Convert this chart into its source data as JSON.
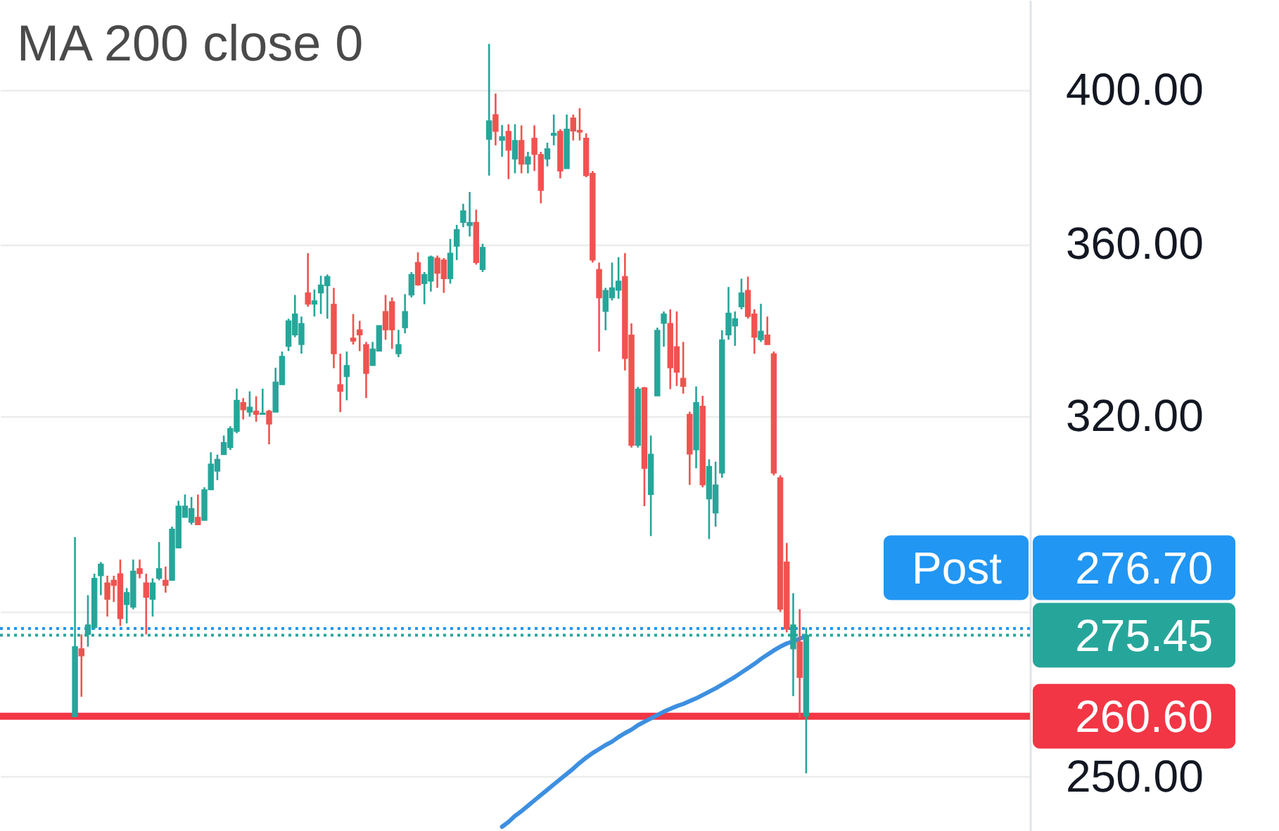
{
  "chart_data": {
    "type": "candlestick",
    "title": "MA 200 close 0",
    "categories": [
      null,
      null,
      null,
      null,
      null,
      null,
      null,
      null,
      null,
      null,
      null,
      null,
      null,
      null,
      null,
      null,
      null,
      null,
      null,
      null,
      null,
      null,
      null,
      null,
      null,
      null,
      null,
      null,
      null,
      null,
      null,
      null,
      null,
      null,
      null,
      null,
      null,
      null,
      null,
      null,
      null,
      null,
      null,
      null,
      null,
      null,
      null,
      null,
      null,
      null,
      null,
      null,
      null,
      null,
      null,
      null,
      null,
      null,
      null,
      null,
      null,
      null,
      null,
      null,
      null,
      null,
      null,
      null,
      null,
      null,
      null,
      null,
      null,
      null,
      null,
      null,
      null,
      null,
      null,
      null,
      null,
      null,
      null,
      null,
      null,
      null,
      null,
      null,
      null,
      null,
      null,
      null,
      null,
      null,
      null,
      null,
      null,
      null,
      null,
      null,
      null,
      null,
      null,
      null,
      null,
      null,
      null,
      null,
      null,
      null,
      null,
      null,
      null,
      null,
      null,
      null,
      null,
      null,
      null,
      null,
      null,
      null,
      null,
      null,
      null,
      null,
      null,
      null,
      null,
      null,
      null,
      null,
      null,
      null,
      null,
      null,
      null,
      null,
      null,
      null,
      null,
      null,
      null,
      null,
      null,
      null,
      null,
      null,
      null,
      null,
      null,
      null,
      null,
      null,
      null,
      null,
      null
    ],
    "ohlc": [
      null,
      null,
      null,
      null,
      null,
      null,
      null,
      null,
      null,
      null,
      [
        260.5,
        294.6,
        260.5,
        273.3
      ],
      [
        272.9,
        275.6,
        264.1,
        271.6
      ],
      [
        275.6,
        283.1,
        273.3,
        277.4
      ],
      [
        276.9,
        287.3,
        276.5,
        286.4
      ],
      [
        286.9,
        289.6,
        283.1,
        289.2
      ],
      [
        285.5,
        286.9,
        279.0,
        282.3
      ],
      [
        286.0,
        286.9,
        281.8,
        285.0
      ],
      [
        287.3,
        290.1,
        277.2,
        278.6
      ],
      [
        281.3,
        284.5,
        277.7,
        283.6
      ],
      [
        280.8,
        290.1,
        280.4,
        287.8
      ],
      [
        288.3,
        290.1,
        286.4,
        287.3
      ],
      [
        285.5,
        287.3,
        275.6,
        282.7
      ],
      [
        282.3,
        286.4,
        279.0,
        285.5
      ],
      [
        286.4,
        293.6,
        286.0,
        288.3
      ],
      [
        286.0,
        288.7,
        283.6,
        285.0
      ],
      [
        286.0,
        296.7,
        286.0,
        296.2
      ],
      [
        292.4,
        302.0,
        292.4,
        300.9
      ],
      [
        298.6,
        303.3,
        298.6,
        300.9
      ],
      [
        297.6,
        302.8,
        297.1,
        300.4
      ],
      [
        298.6,
        303.3,
        297.1,
        297.1
      ],
      [
        298.0,
        304.8,
        298.0,
        304.3
      ],
      [
        304.3,
        312.2,
        304.3,
        309.7
      ],
      [
        308.2,
        311.7,
        306.3,
        310.7
      ],
      [
        311.7,
        315.8,
        311.7,
        314.3
      ],
      [
        313.2,
        317.8,
        312.7,
        317.3
      ],
      [
        316.7,
        326.1,
        316.3,
        323.5
      ],
      [
        323.0,
        324.0,
        319.3,
        321.4
      ],
      [
        320.9,
        325.5,
        319.9,
        322.0
      ],
      [
        321.1,
        324.4,
        318.8,
        320.4
      ],
      [
        320.4,
        326.1,
        320.4,
        320.7
      ],
      [
        321.1,
        321.4,
        313.9,
        318.3
      ],
      [
        320.9,
        330.8,
        320.9,
        327.6
      ],
      [
        327.0,
        334.5,
        327.0,
        333.4
      ],
      [
        335.7,
        342.1,
        334.6,
        341.6
      ],
      [
        338.3,
        347.7,
        337.8,
        343.2
      ],
      [
        336.1,
        342.6,
        334.0,
        341.0
      ],
      [
        348.2,
        357.8,
        344.9,
        345.5
      ],
      [
        345.5,
        349.0,
        342.6,
        346.3
      ],
      [
        348.2,
        352.3,
        343.2,
        350.1
      ],
      [
        349.9,
        352.6,
        342.1,
        352.1
      ],
      [
        345.5,
        349.4,
        330.7,
        334.0
      ],
      [
        327.0,
        334.0,
        320.9,
        325.5
      ],
      [
        328.8,
        334.5,
        323.5,
        331.3
      ],
      [
        337.6,
        343.2,
        336.1,
        336.9
      ],
      [
        339.5,
        341.6,
        334.6,
        338.3
      ],
      [
        336.1,
        336.7,
        324.0,
        329.5
      ],
      [
        331.3,
        336.7,
        331.3,
        335.1
      ],
      [
        334.6,
        340.5,
        334.6,
        340.5
      ],
      [
        343.8,
        347.7,
        337.2,
        339.5
      ],
      [
        346.1,
        347.1,
        335.1,
        339.5
      ],
      [
        334.0,
        339.5,
        333.2,
        336.1
      ],
      [
        340.0,
        347.9,
        338.7,
        343.8
      ],
      [
        347.7,
        353.2,
        347.1,
        352.6
      ],
      [
        355.5,
        358.0,
        349.9,
        350.1
      ],
      [
        350.4,
        353.2,
        345.5,
        352.6
      ],
      [
        351.0,
        357.2,
        348.5,
        356.9
      ],
      [
        356.6,
        357.2,
        349.4,
        352.9
      ],
      [
        356.1,
        356.6,
        348.2,
        351.6
      ],
      [
        351.6,
        361.3,
        350.4,
        357.8
      ],
      [
        359.5,
        364.8,
        356.1,
        363.6
      ],
      [
        365.4,
        370.1,
        364.2,
        368.3
      ],
      [
        364.6,
        373.1,
        361.9,
        365.4
      ],
      [
        365.4,
        368.6,
        355.0,
        355.5
      ],
      [
        353.8,
        360.1,
        353.2,
        359.2
      ],
      [
        386.8,
        412.9,
        377.3,
        391.7
      ],
      [
        393.4,
        399.1,
        385.2,
        388.9
      ],
      [
        386.5,
        390.6,
        382.2,
        387.5
      ],
      [
        388.9,
        390.8,
        376.4,
        383.9
      ],
      [
        381.6,
        390.8,
        377.9,
        386.5
      ],
      [
        386.5,
        390.5,
        377.9,
        380.3
      ],
      [
        380.3,
        383.5,
        377.9,
        382.2
      ],
      [
        387.1,
        390.5,
        378.5,
        382.8
      ],
      [
        382.8,
        383.5,
        370.2,
        373.5
      ],
      [
        381.6,
        385.9,
        379.7,
        384.3
      ],
      [
        387.8,
        393.4,
        385.2,
        388.4
      ],
      [
        388.9,
        389.5,
        376.6,
        378.5
      ],
      [
        379.1,
        393.4,
        379.1,
        389.5
      ],
      [
        392.5,
        393.4,
        386.5,
        389.0
      ],
      [
        389.2,
        395.1,
        386.5,
        388.7
      ],
      [
        387.1,
        388.4,
        376.9,
        377.3
      ],
      [
        377.9,
        378.5,
        355.5,
        356.1
      ],
      [
        353.8,
        355.5,
        334.5,
        347.0
      ],
      [
        343.8,
        349.4,
        339.4,
        348.8
      ],
      [
        347.0,
        355.5,
        346.4,
        349.4
      ],
      [
        348.8,
        356.8,
        346.8,
        351.0
      ],
      [
        352.1,
        357.8,
        330.2,
        332.9
      ],
      [
        338.3,
        341.0,
        313.2,
        313.7
      ],
      [
        313.7,
        326.5,
        313.2,
        326.0
      ],
      [
        326.3,
        326.5,
        300.9,
        308.8
      ],
      [
        303.3,
        315.8,
        294.8,
        311.8
      ],
      [
        324.5,
        340.0,
        324.5,
        339.4
      ],
      [
        341.0,
        343.8,
        335.6,
        343.2
      ],
      [
        341.0,
        344.3,
        326.0,
        330.8
      ],
      [
        335.6,
        343.8,
        326.7,
        329.8
      ],
      [
        328.4,
        336.7,
        325.0,
        326.6
      ],
      [
        320.4,
        321.0,
        305.3,
        311.8
      ],
      [
        312.7,
        326.6,
        308.8,
        323.0
      ],
      [
        322.2,
        324.5,
        304.8,
        305.3
      ],
      [
        302.4,
        310.7,
        294.2,
        309.2
      ],
      [
        299.5,
        310.2,
        296.7,
        305.3
      ],
      [
        307.8,
        339.4,
        306.8,
        337.2
      ],
      [
        338.3,
        349.6,
        337.2,
        343.4
      ],
      [
        340.4,
        343.8,
        335.8,
        342.1
      ],
      [
        344.9,
        351.6,
        344.3,
        348.2
      ],
      [
        348.8,
        352.1,
        342.1,
        342.6
      ],
      [
        343.2,
        344.3,
        334.0,
        337.8
      ],
      [
        337.2,
        345.6,
        336.7,
        339.2
      ],
      [
        338.3,
        342.6,
        336.1,
        336.1
      ],
      [
        334.0,
        334.5,
        307.3,
        307.8
      ],
      [
        306.8,
        307.3,
        279.9,
        280.4
      ],
      [
        289.6,
        293.4,
        276.0,
        276.6
      ],
      [
        272.9,
        283.5,
        264.2,
        277.4
      ],
      [
        274.2,
        280.4,
        260.3,
        267.6
      ],
      [
        260.6,
        276.9,
        250.6,
        275.45
      ],
      null,
      null,
      null,
      null,
      null,
      null,
      null,
      null,
      null,
      null,
      null,
      null,
      null,
      null,
      null,
      null,
      null,
      null,
      null,
      null,
      null,
      null,
      null,
      null,
      null,
      null,
      null,
      null,
      null,
      null,
      null,
      null,
      null
    ],
    "colors": [
      null,
      null,
      null,
      null,
      null,
      null,
      null,
      null,
      null,
      null,
      "#26a69a",
      "#ef5350",
      "#26a69a",
      "#26a69a",
      "#26a69a",
      "#ef5350",
      "#ef5350",
      "#ef5350",
      "#26a69a",
      "#26a69a",
      "#ef5350",
      "#ef5350",
      "#26a69a",
      "#26a69a",
      "#ef5350",
      "#26a69a",
      "#26a69a",
      "#26a69a",
      "#26a69a",
      "#ef5350",
      "#26a69a",
      "#26a69a",
      "#26a69a",
      "#26a69a",
      "#26a69a",
      "#26a69a",
      "#ef5350",
      "#26a69a",
      "#ef5350",
      "#26a69a",
      "#ef5350",
      "#26a69a",
      "#26a69a",
      "#26a69a",
      "#26a69a",
      "#26a69a",
      "#ef5350",
      "#26a69a",
      "#26a69a",
      "#26a69a",
      "#ef5350",
      "#ef5350",
      "#26a69a",
      "#ef5350",
      "#ef5350",
      "#ef5350",
      "#26a69a",
      "#26a69a",
      "#ef5350",
      "#ef5350",
      "#26a69a",
      "#26a69a",
      "#26a69a",
      "#ef5350",
      "#26a69a",
      "#26a69a",
      "#ef5350",
      "#ef5350",
      "#26a69a",
      "#26a69a",
      "#26a69a",
      "#26a69a",
      "#ef5350",
      "#26a69a",
      "#26a69a",
      "#ef5350",
      "#26a69a",
      "#ef5350",
      "#26a69a",
      "#ef5350",
      "#26a69a",
      "#ef5350",
      "#ef5350",
      "#26a69a",
      "#26a69a",
      "#ef5350",
      "#26a69a",
      "#ef5350",
      "#ef5350",
      "#ef5350",
      "#ef5350",
      "#ef5350",
      "#26a69a",
      "#26a69a",
      "#26a69a",
      "#ef5350",
      "#ef5350",
      "#26a69a",
      "#ef5350",
      "#26a69a",
      "#26a69a",
      "#26a69a",
      "#ef5350",
      "#ef5350",
      "#ef5350",
      "#ef5350",
      "#26a69a",
      "#ef5350",
      "#26a69a",
      "#26a69a",
      "#26a69a",
      "#26a69a",
      "#26a69a",
      "#26a69a",
      "#ef5350",
      "#ef5350",
      "#26a69a",
      "#ef5350",
      "#ef5350",
      "#ef5350",
      "#ef5350",
      "#26a69a",
      "#ef5350",
      "#26a69a",
      null,
      null,
      null,
      null,
      null,
      null,
      null,
      null,
      null,
      null,
      null,
      null,
      null,
      null,
      null,
      null,
      null,
      null,
      null,
      null,
      null,
      null,
      null,
      null,
      null,
      null,
      null,
      null,
      null,
      null,
      null,
      null,
      null
    ],
    "series": [
      {
        "type": "line",
        "color": "#3d8fe0",
        "values": [
          null,
          null,
          null,
          null,
          null,
          null,
          null,
          null,
          null,
          null,
          null,
          null,
          null,
          null,
          null,
          null,
          null,
          null,
          null,
          null,
          null,
          null,
          null,
          null,
          null,
          null,
          null,
          null,
          null,
          null,
          null,
          null,
          null,
          null,
          null,
          null,
          null,
          null,
          null,
          null,
          null,
          null,
          null,
          null,
          null,
          null,
          null,
          null,
          null,
          null,
          null,
          null,
          null,
          null,
          null,
          null,
          null,
          null,
          null,
          null,
          null,
          null,
          null,
          null,
          null,
          null,
          null,
          null,
          null,
          null,
          null,
          null,
          null,
          null,
          null,
          null,
          241.6,
          242.4,
          243.4,
          244.2,
          245.1,
          246.0,
          246.9,
          247.8,
          248.7,
          249.6,
          250.5,
          251.4,
          252.4,
          253.3,
          254.1,
          254.8,
          255.5,
          256.1,
          256.9,
          257.6,
          258.2,
          259.0,
          259.6,
          260.2,
          260.8,
          261.4,
          261.9,
          262.4,
          262.8,
          263.3,
          263.8,
          264.4,
          265.0,
          265.6,
          266.3,
          267.0,
          267.7,
          268.5,
          269.3,
          270.1,
          271.0,
          271.8,
          272.6,
          273.3,
          273.9,
          274.3,
          274.8,
          275.3,
          null,
          null,
          null,
          null,
          null,
          null,
          null,
          null,
          null,
          null,
          null,
          null,
          null,
          null,
          null,
          null,
          null,
          null,
          null,
          null,
          null,
          null,
          null,
          null,
          null,
          null,
          null,
          null,
          null,
          null,
          null,
          null,
          null
        ]
      }
    ],
    "ylim": [
      240.9,
      425.5
    ],
    "yticks": [
      {
        "value": 250,
        "label": "250.00"
      },
      {
        "value": 280,
        "label": null
      },
      {
        "value": 320,
        "label": "320.00"
      },
      {
        "value": 360,
        "label": "360.00"
      },
      {
        "value": 400,
        "label": "400.00"
      }
    ],
    "log": true,
    "grid": "y",
    "tick_labels": "y",
    "ref_lines": [
      {
        "axis": "y",
        "value": 276.7,
        "label": "Post 276.70",
        "color": "#2196f3",
        "line_style": "dotted"
      },
      {
        "axis": "y",
        "value": 275.45,
        "label": "275.45",
        "color": "#26a69a",
        "line_style": "dotted"
      },
      {
        "axis": "y",
        "value": 260.6,
        "label": "260.60",
        "color": "#f23645",
        "line_style": "solid"
      }
    ]
  }
}
